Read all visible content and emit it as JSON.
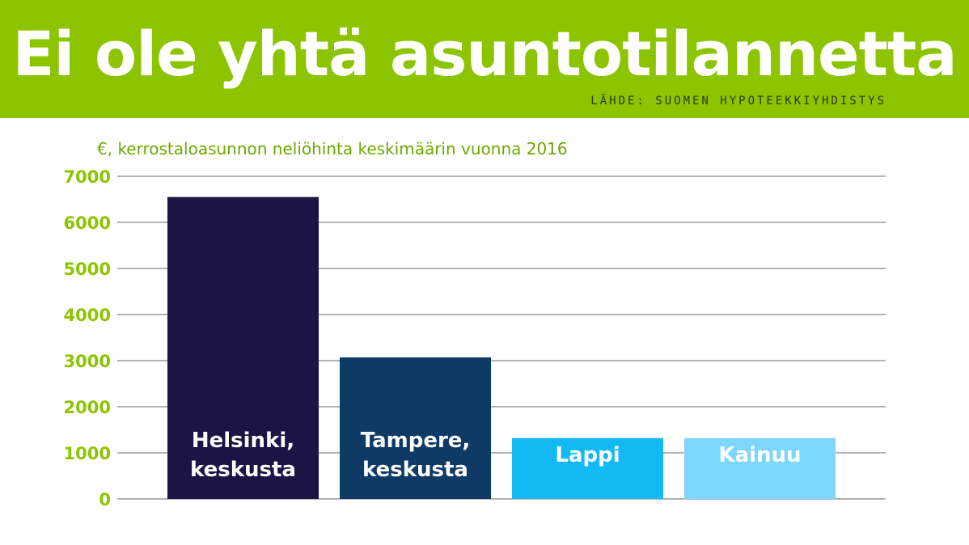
{
  "header": {
    "title": "Ei ole yhtä asuntotilannetta",
    "source": "LÄHDE: SUOMEN HYPOTEEKKIYHDISTYS"
  },
  "colors": {
    "header_bg": "#8dc400",
    "tick_text": "#8dc400",
    "subtitle_text": "#6fa800",
    "gridline": "#9a9a9a"
  },
  "chart_data": {
    "type": "bar",
    "title": "€, kerrostaloasunnon neliöhinta keskimäärin vuonna 2016",
    "xlabel": "",
    "ylabel": "",
    "ylim": [
      0,
      7000
    ],
    "yticks": [
      0,
      1000,
      2000,
      3000,
      4000,
      5000,
      6000,
      7000
    ],
    "grid": true,
    "categories": [
      [
        "Helsinki,",
        "keskusta"
      ],
      [
        "Tampere,",
        "keskusta"
      ],
      [
        "Lappi"
      ],
      [
        "Kainuu"
      ]
    ],
    "values": [
      6550,
      3070,
      1320,
      1320
    ],
    "bar_colors": [
      "#1c1445",
      "#0f3a66",
      "#12b9f2",
      "#7dd6fb"
    ]
  }
}
